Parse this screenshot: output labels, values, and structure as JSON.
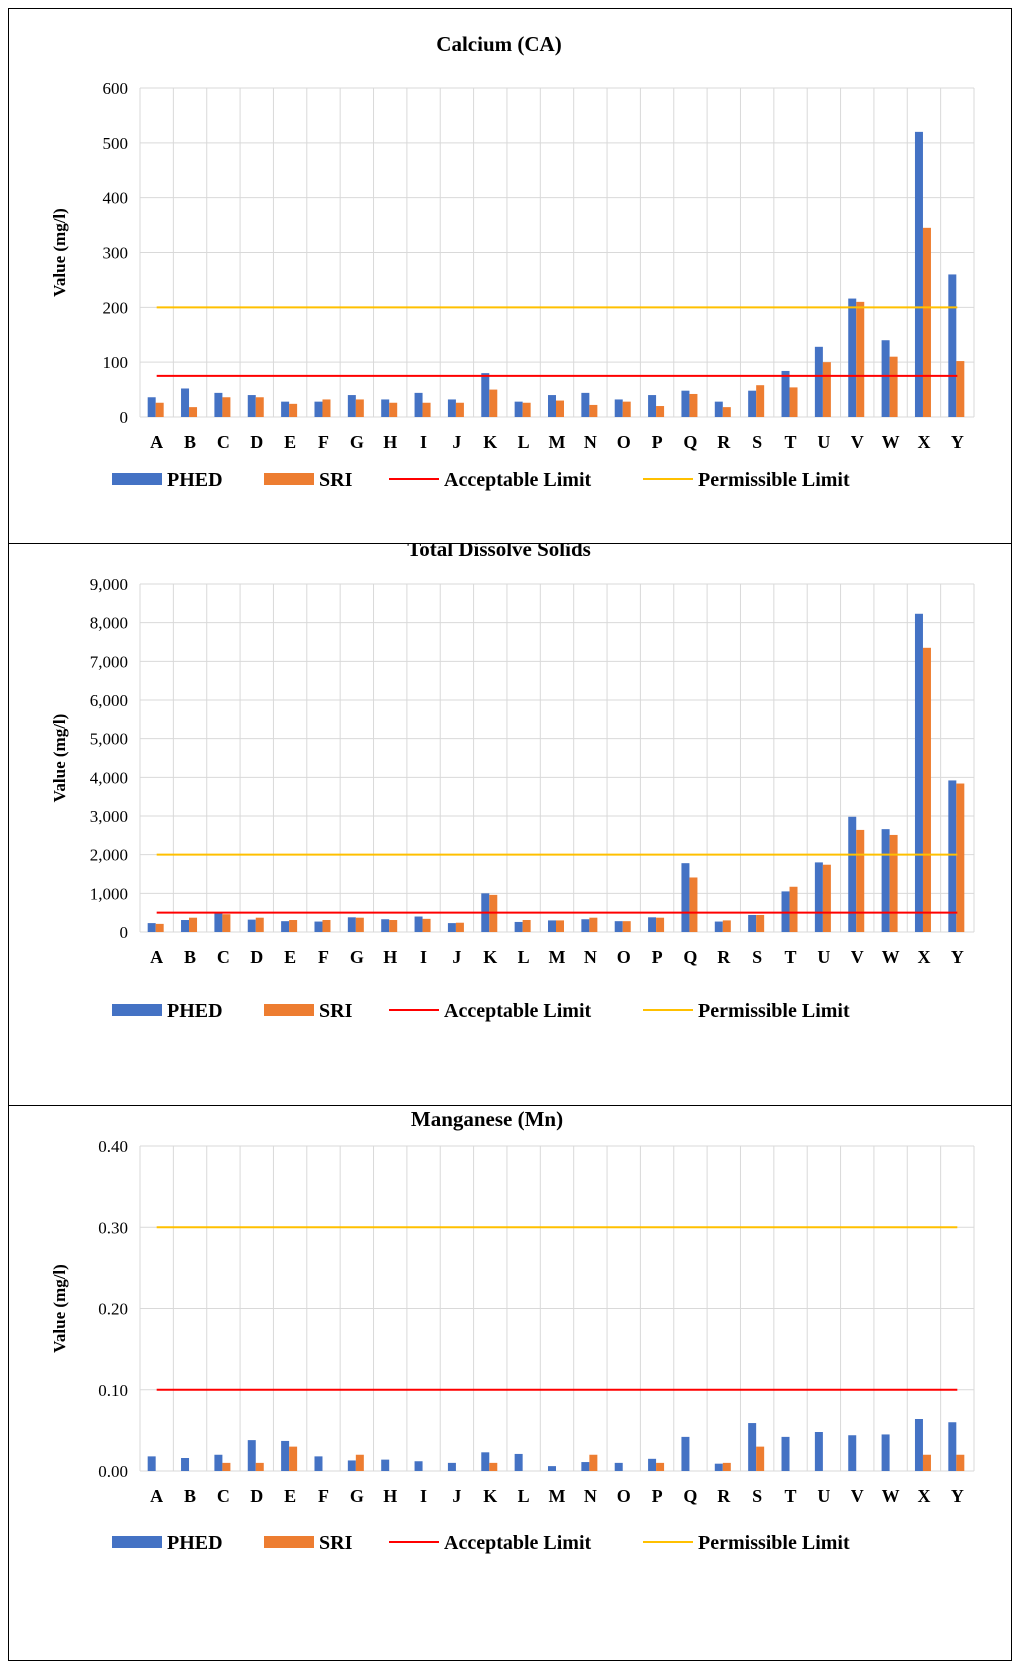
{
  "colors": {
    "PHED": "#4472C4",
    "SRI": "#ED7D31",
    "Acceptable Limit": "#FF0000",
    "Permissible Limit": "#FFC000",
    "grid": "#D9D9D9"
  },
  "chart_data": [
    {
      "type": "bar",
      "title": "Calcium (CA)",
      "xlabel": "",
      "ylabel": "Value (mg/l)",
      "ylim": [
        0,
        600
      ],
      "yticks": [
        "0",
        "100",
        "200",
        "300",
        "400",
        "500",
        "600"
      ],
      "categories": [
        "A",
        "B",
        "C",
        "D",
        "E",
        "F",
        "G",
        "H",
        "I",
        "J",
        "K",
        "L",
        "M",
        "N",
        "O",
        "P",
        "Q",
        "R",
        "S",
        "T",
        "U",
        "V",
        "W",
        "X",
        "Y"
      ],
      "series": [
        {
          "name": "PHED",
          "values": [
            36,
            52,
            44,
            40,
            28,
            28,
            40,
            32,
            44,
            32,
            80,
            28,
            40,
            44,
            32,
            40,
            48,
            28,
            48,
            84,
            128,
            216,
            140,
            520,
            260
          ]
        },
        {
          "name": "SRI",
          "values": [
            26,
            18,
            36,
            36,
            24,
            32,
            32,
            26,
            26,
            26,
            50,
            26,
            30,
            22,
            28,
            20,
            42,
            18,
            58,
            54,
            100,
            210,
            110,
            345,
            102
          ]
        }
      ],
      "lines": [
        {
          "name": "Acceptable Limit",
          "value": 75
        },
        {
          "name": "Permissible Limit",
          "value": 200
        }
      ],
      "grid": true,
      "legend": "bottom"
    },
    {
      "type": "bar",
      "title": "Total Dissolve Solids",
      "xlabel": "",
      "ylabel": "Value (mg/l)",
      "ylim": [
        0,
        9000
      ],
      "yticks": [
        "0",
        "1,000",
        "2,000",
        "3,000",
        "4,000",
        "5,000",
        "6,000",
        "7,000",
        "8,000",
        "9,000"
      ],
      "categories": [
        "A",
        "B",
        "C",
        "D",
        "E",
        "F",
        "G",
        "H",
        "I",
        "J",
        "K",
        "L",
        "M",
        "N",
        "O",
        "P",
        "Q",
        "R",
        "S",
        "T",
        "U",
        "V",
        "W",
        "X",
        "Y"
      ],
      "series": [
        {
          "name": "PHED",
          "values": [
            230,
            310,
            490,
            320,
            280,
            270,
            380,
            330,
            400,
            230,
            1000,
            260,
            300,
            330,
            280,
            380,
            1780,
            270,
            440,
            1050,
            1800,
            2980,
            2660,
            8230,
            3920
          ]
        },
        {
          "name": "SRI",
          "values": [
            210,
            370,
            460,
            370,
            310,
            310,
            370,
            310,
            340,
            240,
            960,
            310,
            300,
            370,
            280,
            370,
            1410,
            300,
            440,
            1170,
            1740,
            2640,
            2510,
            7350,
            3840
          ]
        }
      ],
      "lines": [
        {
          "name": "Acceptable Limit",
          "value": 500
        },
        {
          "name": "Permissible Limit",
          "value": 2000
        }
      ],
      "grid": true,
      "legend": "bottom"
    },
    {
      "type": "bar",
      "title": "Manganese (Mn)",
      "xlabel": "",
      "ylabel": "Value (mg/l)",
      "ylim": [
        0,
        0.4
      ],
      "yticks": [
        "0.00",
        "0.10",
        "0.20",
        "0.30",
        "0.40"
      ],
      "categories": [
        "A",
        "B",
        "C",
        "D",
        "E",
        "F",
        "G",
        "H",
        "I",
        "J",
        "K",
        "L",
        "M",
        "N",
        "O",
        "P",
        "Q",
        "R",
        "S",
        "T",
        "U",
        "V",
        "W",
        "X",
        "Y"
      ],
      "series": [
        {
          "name": "PHED",
          "values": [
            0.018,
            0.016,
            0.02,
            0.038,
            0.037,
            0.018,
            0.013,
            0.014,
            0.012,
            0.01,
            0.023,
            0.021,
            0.006,
            0.011,
            0.01,
            0.015,
            0.042,
            0.009,
            0.059,
            0.042,
            0.048,
            0.044,
            0.045,
            0.064,
            0.06
          ]
        },
        {
          "name": "SRI",
          "values": [
            0,
            0,
            0.01,
            0.01,
            0.03,
            0,
            0.02,
            0,
            0,
            0,
            0.01,
            0,
            0,
            0.02,
            0,
            0.01,
            0,
            0.01,
            0.03,
            0,
            0,
            0,
            0,
            0.02,
            0.02
          ]
        }
      ],
      "lines": [
        {
          "name": "Acceptable Limit",
          "value": 0.1
        },
        {
          "name": "Permissible Limit",
          "value": 0.3
        }
      ],
      "grid": true,
      "legend": "bottom"
    }
  ]
}
